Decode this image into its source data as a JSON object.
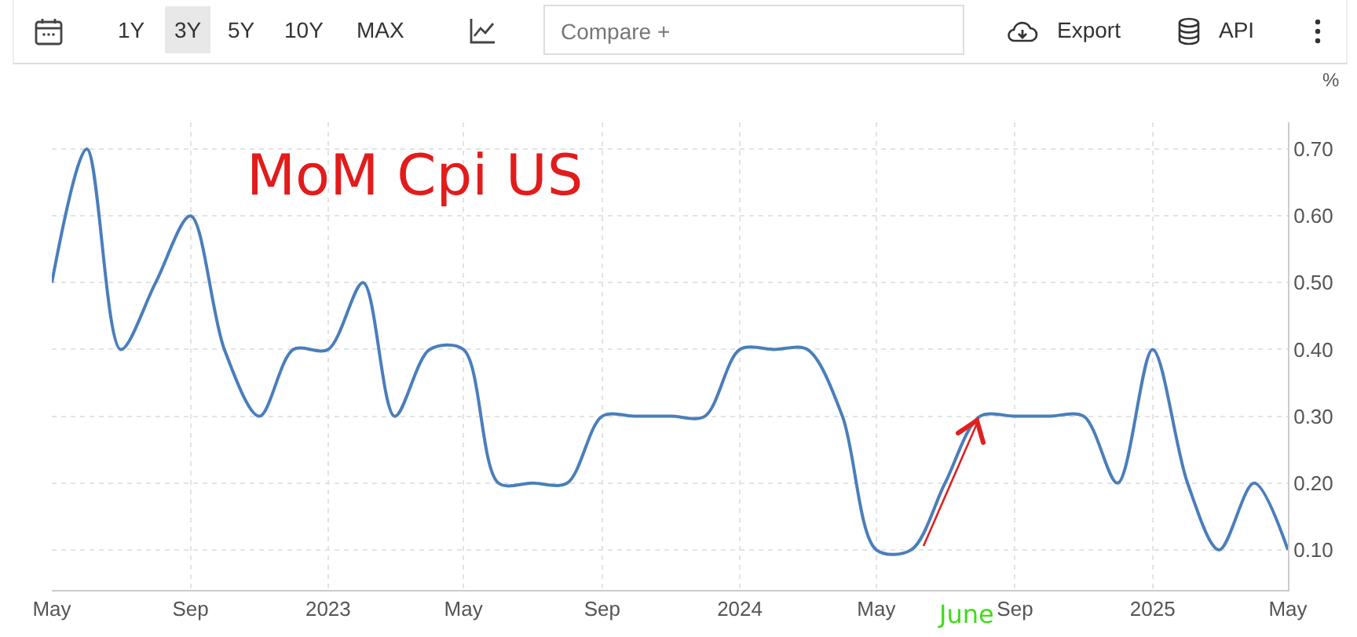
{
  "chart_data": {
    "type": "line",
    "ylabel": "%",
    "x": [
      "2022-05",
      "2022-06",
      "2022-07",
      "2022-08",
      "2022-09",
      "2022-10",
      "2022-11",
      "2022-12",
      "2023-01",
      "2023-02",
      "2023-03",
      "2023-04",
      "2023-05",
      "2023-06",
      "2023-07",
      "2023-08",
      "2023-09",
      "2023-10",
      "2023-11",
      "2023-12",
      "2024-01",
      "2024-02",
      "2024-03",
      "2024-04",
      "2024-05",
      "2024-06",
      "2024-07",
      "2024-08",
      "2024-09",
      "2024-10",
      "2024-11",
      "2024-12",
      "2025-01",
      "2025-02",
      "2025-03",
      "2025-04",
      "2025-05"
    ],
    "series": [
      {
        "color": "#4a7ebb",
        "values": [
          0.5,
          0.7,
          0.4,
          0.5,
          0.6,
          0.4,
          0.3,
          0.4,
          0.4,
          0.5,
          0.3,
          0.4,
          0.4,
          0.2,
          0.2,
          0.2,
          0.3,
          0.3,
          0.3,
          0.3,
          0.4,
          0.4,
          0.4,
          0.3,
          0.1,
          0.1,
          0.2,
          0.3,
          0.3,
          0.3,
          0.3,
          0.2,
          0.4,
          0.2,
          0.1,
          0.2,
          0.1
        ]
      }
    ],
    "xlim": [
      "2022-05",
      "2025-05"
    ],
    "xticks": [
      {
        "value": "2022-05",
        "label": "May"
      },
      {
        "value": "2022-09",
        "label": "Sep"
      },
      {
        "value": "2023-01",
        "label": "2023"
      },
      {
        "value": "2023-05",
        "label": "May"
      },
      {
        "value": "2023-09",
        "label": "Sep"
      },
      {
        "value": "2024-01",
        "label": "2024"
      },
      {
        "value": "2024-05",
        "label": "May"
      },
      {
        "value": "2024-09",
        "label": "Sep"
      },
      {
        "value": "2025-01",
        "label": "2025"
      },
      {
        "value": "2025-05",
        "label": "May"
      }
    ],
    "ylim": [
      0.04,
      0.74
    ],
    "yticks": [
      {
        "value": 0.1,
        "label": "0.10"
      },
      {
        "value": 0.2,
        "label": "0.20"
      },
      {
        "value": 0.3,
        "label": "0.30"
      },
      {
        "value": 0.4,
        "label": "0.40"
      },
      {
        "value": 0.5,
        "label": "0.50"
      },
      {
        "value": 0.6,
        "label": "0.60"
      },
      {
        "value": 0.7,
        "label": "0.70"
      }
    ],
    "grid": true,
    "marker": "none",
    "line_style": "solid",
    "annotations": [
      "MoM Cpi US",
      "June",
      "1Y",
      "3Y",
      "5Y",
      "10Y",
      "MAX",
      "Compare +",
      "Export",
      "API"
    ]
  }
}
